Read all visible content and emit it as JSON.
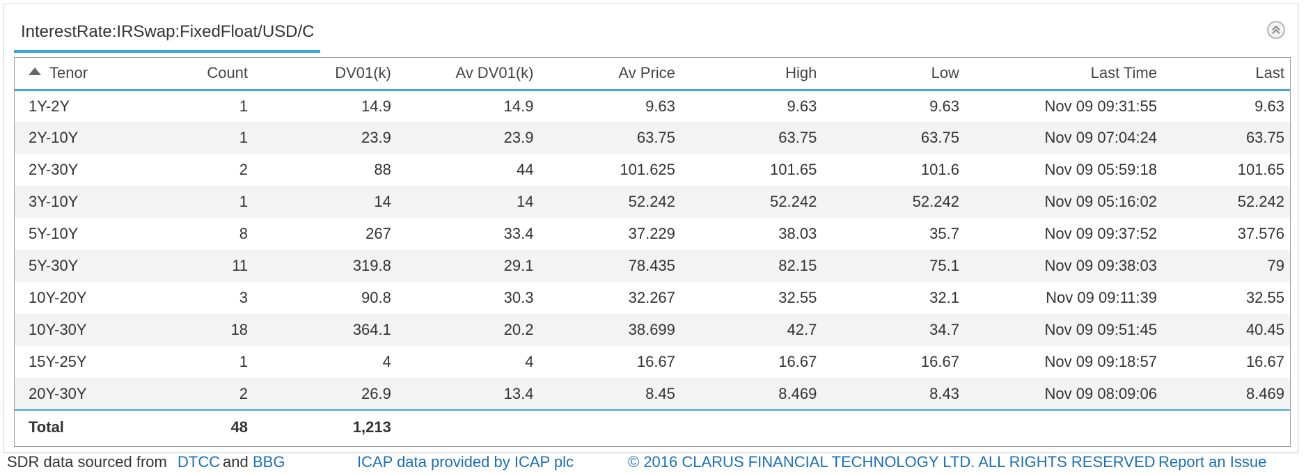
{
  "panel": {
    "tab_title": "InterestRate:IRSwap:FixedFloat/USD/C",
    "collapse_icon": "chevron-up-circle-icon"
  },
  "table": {
    "sort_icon": "sort-ascending-icon",
    "columns": [
      "Tenor",
      "Count",
      "DV01(k)",
      "Av DV01(k)",
      "Av Price",
      "High",
      "Low",
      "Last Time",
      "Last"
    ],
    "rows": [
      [
        "1Y-2Y",
        "1",
        "14.9",
        "14.9",
        "9.63",
        "9.63",
        "9.63",
        "Nov 09 09:31:55",
        "9.63"
      ],
      [
        "2Y-10Y",
        "1",
        "23.9",
        "23.9",
        "63.75",
        "63.75",
        "63.75",
        "Nov 09 07:04:24",
        "63.75"
      ],
      [
        "2Y-30Y",
        "2",
        "88",
        "44",
        "101.625",
        "101.65",
        "101.6",
        "Nov 09 05:59:18",
        "101.65"
      ],
      [
        "3Y-10Y",
        "1",
        "14",
        "14",
        "52.242",
        "52.242",
        "52.242",
        "Nov 09 05:16:02",
        "52.242"
      ],
      [
        "5Y-10Y",
        "8",
        "267",
        "33.4",
        "37.229",
        "38.03",
        "35.7",
        "Nov 09 09:37:52",
        "37.576"
      ],
      [
        "5Y-30Y",
        "11",
        "319.8",
        "29.1",
        "78.435",
        "82.15",
        "75.1",
        "Nov 09 09:38:03",
        "79"
      ],
      [
        "10Y-20Y",
        "3",
        "90.8",
        "30.3",
        "32.267",
        "32.55",
        "32.1",
        "Nov 09 09:11:39",
        "32.55"
      ],
      [
        "10Y-30Y",
        "18",
        "364.1",
        "20.2",
        "38.699",
        "42.7",
        "34.7",
        "Nov 09 09:51:45",
        "40.45"
      ],
      [
        "15Y-25Y",
        "1",
        "4",
        "4",
        "16.67",
        "16.67",
        "16.67",
        "Nov 09 09:18:57",
        "16.67"
      ],
      [
        "20Y-30Y",
        "2",
        "26.9",
        "13.4",
        "8.45",
        "8.469",
        "8.43",
        "Nov 09 08:09:06",
        "8.469"
      ]
    ],
    "total": [
      "Total",
      "48",
      "1,213",
      "",
      "",
      "",
      "",
      "",
      ""
    ]
  },
  "footer": {
    "sdr_prefix": "SDR data sourced from",
    "dtcc_link": "DTCC",
    "and": "and",
    "bbg_link": "BBG",
    "icap_link": "ICAP data provided by ICAP plc",
    "copyright_link": "© 2016 CLARUS FINANCIAL TECHNOLOGY LTD. ALL RIGHTS RESERVED",
    "report_link": "Report an Issue"
  },
  "colors": {
    "accent": "#3ba9dc",
    "link": "#1a6fb5",
    "row_alt": "#f3f3f3"
  }
}
